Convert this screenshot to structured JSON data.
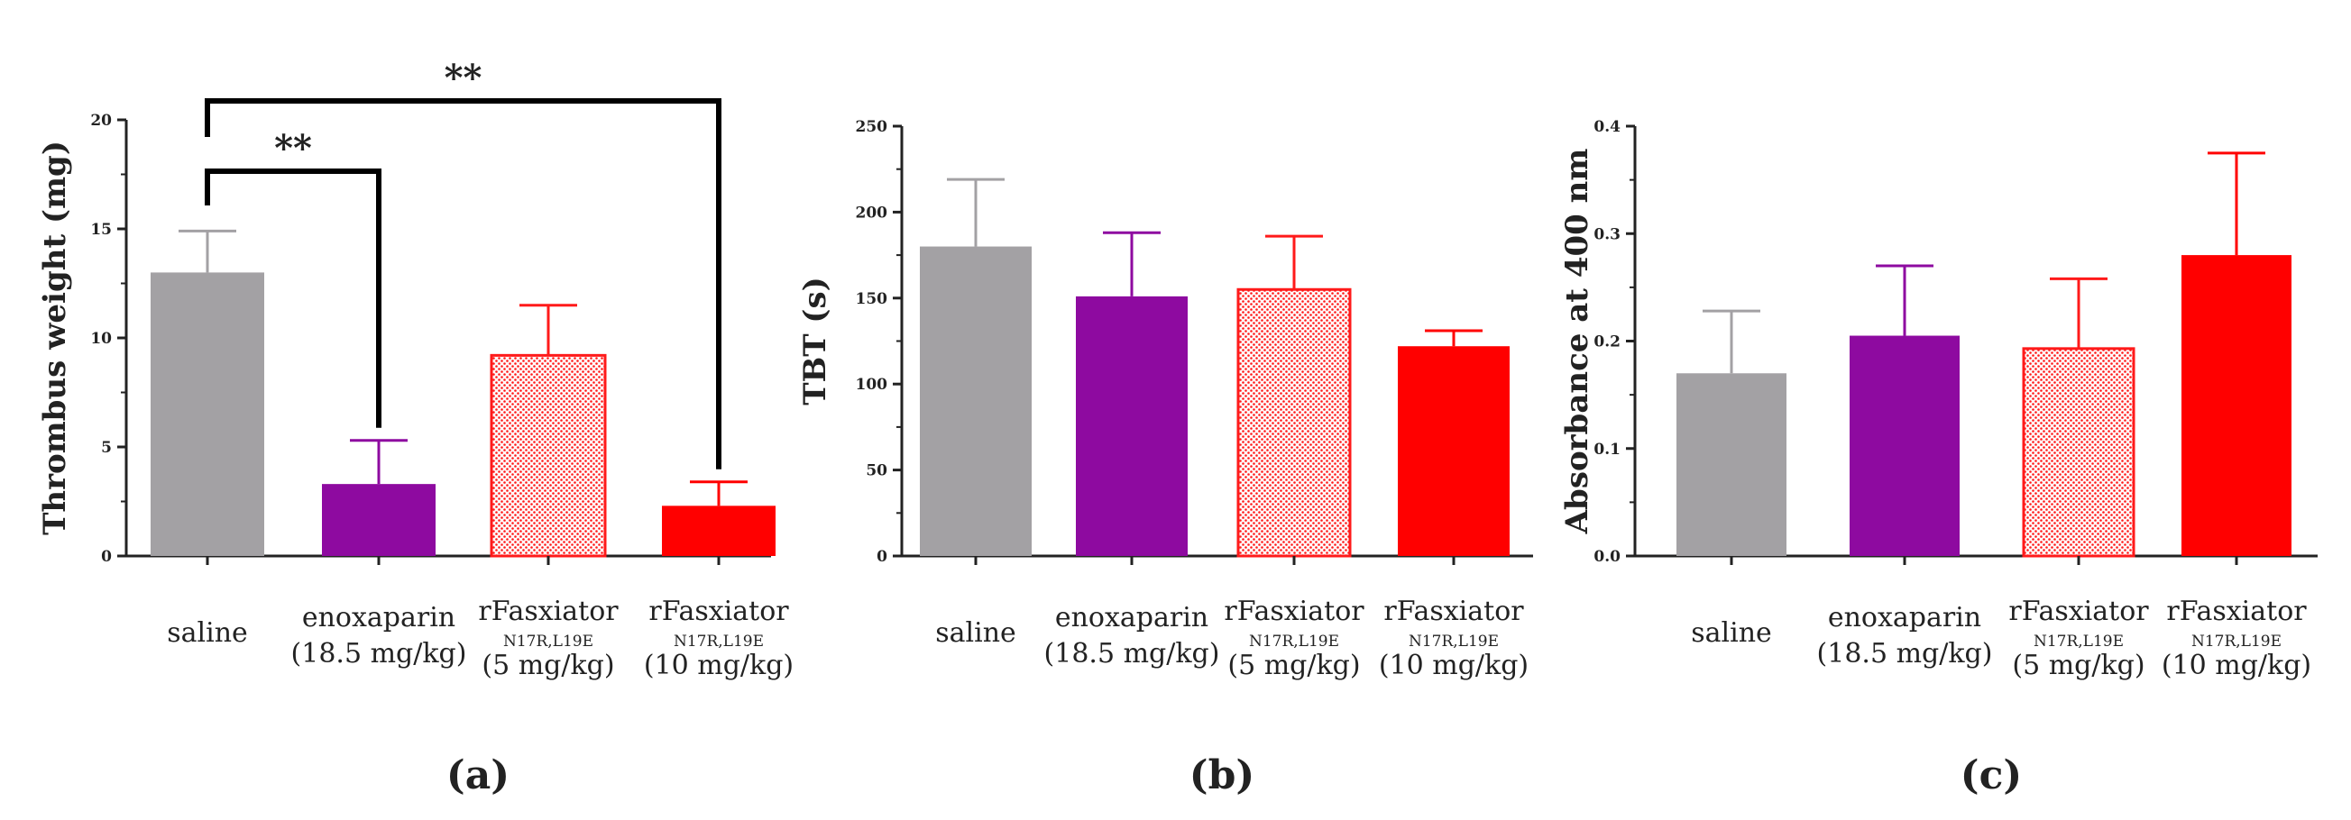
{
  "chart_data": [
    {
      "type": "bar",
      "panel_label": "(a)",
      "ylabel": "Thrombus weight (mg)",
      "ylim": [
        0,
        20
      ],
      "yticks": [
        "0",
        "5",
        "10",
        "15",
        "20"
      ],
      "categories": [
        {
          "line1": "saline",
          "sub": "",
          "line2": ""
        },
        {
          "line1": "enoxaparin",
          "sub": "",
          "line2": "(18.5 mg/kg)"
        },
        {
          "line1": "rFasxiator",
          "sub": "N17R,L19E",
          "line2": "(5 mg/kg)"
        },
        {
          "line1": "rFasxiator",
          "sub": "N17R,L19E",
          "line2": "(10 mg/kg)"
        }
      ],
      "values": [
        13.0,
        3.3,
        9.2,
        2.3
      ],
      "errors": [
        1.9,
        2.0,
        2.3,
        1.1
      ],
      "colors": [
        "#a3a1a4",
        "#8e0aa0",
        "#ff1a1a",
        "#ff0000"
      ],
      "significance": [
        {
          "from": 0,
          "to": 1,
          "label": "**"
        },
        {
          "from": 0,
          "to": 3,
          "label": "**"
        }
      ]
    },
    {
      "type": "bar",
      "panel_label": "(b)",
      "ylabel": "TBT (s)",
      "ylim": [
        0,
        250
      ],
      "yticks": [
        "0",
        "50",
        "100",
        "150",
        "200",
        "250"
      ],
      "categories": [
        {
          "line1": "saline",
          "sub": "",
          "line2": ""
        },
        {
          "line1": "enoxaparin",
          "sub": "",
          "line2": "(18.5 mg/kg)"
        },
        {
          "line1": "rFasxiator",
          "sub": "N17R,L19E",
          "line2": "(5 mg/kg)"
        },
        {
          "line1": "rFasxiator",
          "sub": "N17R,L19E",
          "line2": "(10 mg/kg)"
        }
      ],
      "values": [
        180,
        151,
        155,
        122
      ],
      "errors": [
        39,
        37,
        31,
        9
      ],
      "colors": [
        "#a3a1a4",
        "#8e0aa0",
        "#ff1a1a",
        "#ff0000"
      ],
      "significance": []
    },
    {
      "type": "bar",
      "panel_label": "(c)",
      "ylabel": "Absorbance at 400 nm",
      "ylim": [
        0,
        0.4
      ],
      "yticks": [
        "0.0",
        "0.1",
        "0.2",
        "0.3",
        "0.4"
      ],
      "categories": [
        {
          "line1": "saline",
          "sub": "",
          "line2": ""
        },
        {
          "line1": "enoxaparin",
          "sub": "",
          "line2": "(18.5 mg/kg)"
        },
        {
          "line1": "rFasxiator",
          "sub": "N17R,L19E",
          "line2": "(5 mg/kg)"
        },
        {
          "line1": "rFasxiator",
          "sub": "N17R,L19E",
          "line2": "(10 mg/kg)"
        }
      ],
      "values": [
        0.17,
        0.205,
        0.193,
        0.28
      ],
      "errors": [
        0.058,
        0.065,
        0.065,
        0.095
      ],
      "colors": [
        "#a3a1a4",
        "#8e0aa0",
        "#ff1a1a",
        "#ff0000"
      ],
      "significance": []
    }
  ]
}
